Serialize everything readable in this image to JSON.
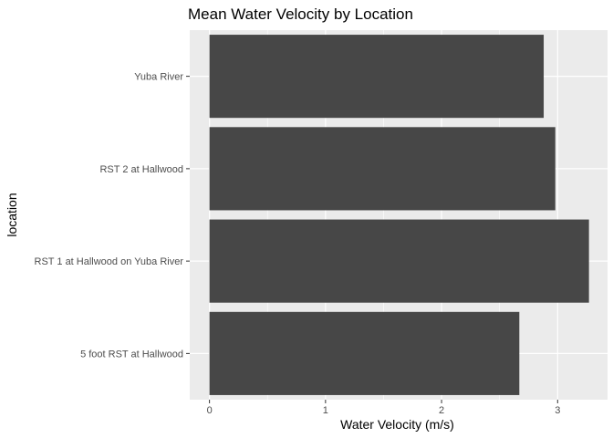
{
  "chart_data": {
    "type": "bar",
    "orientation": "horizontal",
    "title": "Mean Water Velocity by Location",
    "xlabel": "Water Velocity (m/s)",
    "ylabel": "location",
    "categories": [
      "Yuba River",
      "RST 2 at Hallwood",
      "RST 1 at Hallwood on Yuba River",
      "5 foot RST at Hallwood"
    ],
    "values": [
      2.88,
      2.98,
      3.27,
      2.67
    ],
    "xlim": [
      -0.17,
      3.43
    ],
    "xticks": [
      "0",
      "1",
      "2",
      "3"
    ],
    "grid": true,
    "legend": "none",
    "colors": {
      "bar": "#474747",
      "panel": "#ebebeb",
      "grid": "#ffffff"
    }
  }
}
